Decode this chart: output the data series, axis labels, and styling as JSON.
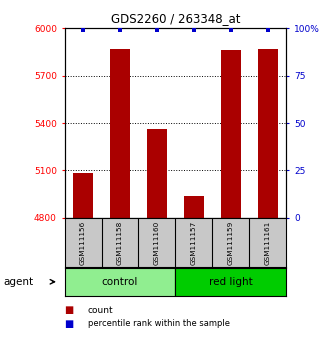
{
  "title": "GDS2260 / 263348_at",
  "samples": [
    "GSM111156",
    "GSM111158",
    "GSM111160",
    "GSM111157",
    "GSM111159",
    "GSM111161"
  ],
  "counts": [
    5085,
    5870,
    5365,
    4940,
    5860,
    5870
  ],
  "groups": [
    "control",
    "control",
    "control",
    "red light",
    "red light",
    "red light"
  ],
  "group_labels": [
    "control",
    "red light"
  ],
  "group_colors": [
    "#90EE90",
    "#00CC00"
  ],
  "bar_color": "#AA0000",
  "percentile_color": "#0000CC",
  "ylim_left": [
    4800,
    6000
  ],
  "yticks_left": [
    4800,
    5100,
    5400,
    5700,
    6000
  ],
  "ylim_right": [
    0,
    100
  ],
  "yticks_right": [
    0,
    25,
    50,
    75,
    100
  ],
  "right_tick_labels": [
    "0",
    "25",
    "50",
    "75",
    "100%"
  ],
  "bar_width": 0.55,
  "bg_color": "#FFFFFF",
  "plot_bg": "#FFFFFF",
  "sample_box_color": "#C8C8C8",
  "percentile_value": 99
}
